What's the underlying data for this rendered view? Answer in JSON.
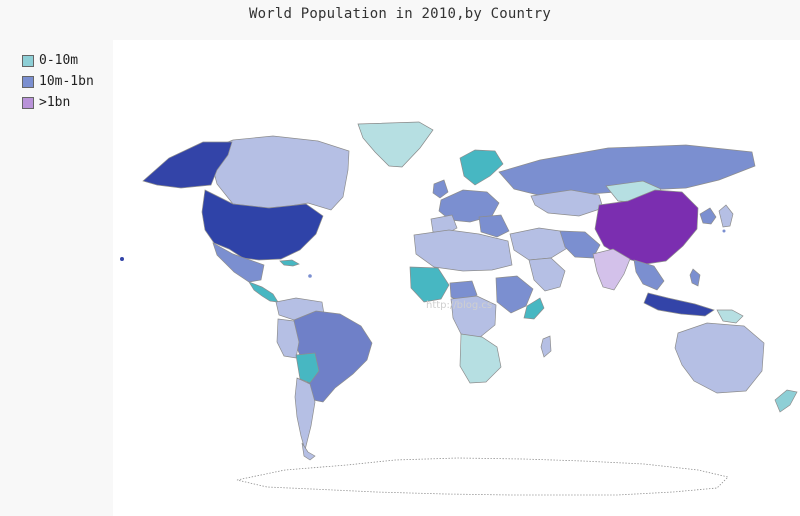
{
  "title": "World Population in 2010,by Country",
  "legend": [
    {
      "label": "0-10m",
      "color": "#8ecfd6"
    },
    {
      "label": "10m-1bn",
      "color": "#7b8fd0"
    },
    {
      "label": ">1bn",
      "color": "#b993d9"
    }
  ],
  "watermark": "http://blog.cs",
  "colors": {
    "panel": "#ffffff",
    "border": "#666666",
    "light_blue": "#b5bfe4",
    "mid_blue": "#7b8fd0",
    "dark_blue": "#3344a8",
    "teal": "#47b7c2",
    "light_teal": "#b6dfe2",
    "purple": "#7a2fb2",
    "light_purple": "#d3c0ea",
    "china": "#7b2eb0",
    "india": "#d3c1ea",
    "usa": "#2f43a8"
  }
}
